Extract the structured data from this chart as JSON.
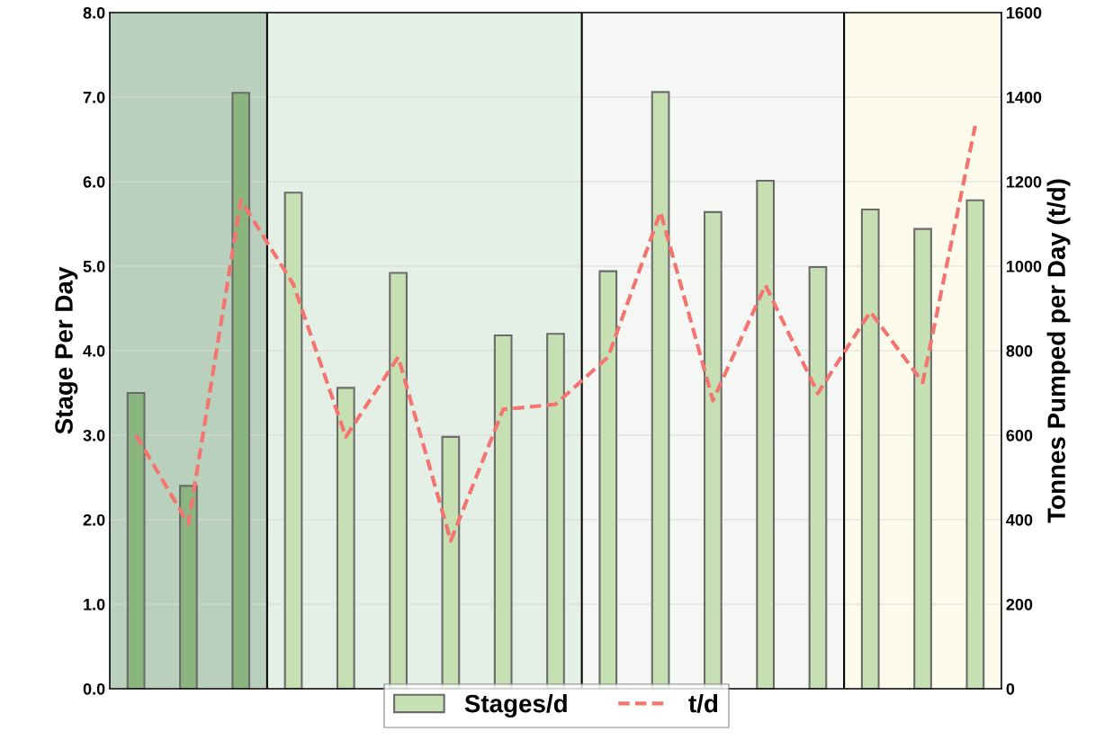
{
  "chart_data": {
    "type": "bar",
    "categories": [
      null,
      null,
      null,
      null,
      null,
      null,
      null,
      null,
      null,
      null,
      null,
      null,
      null,
      null,
      null,
      null,
      null
    ],
    "ylabel": "Stage Per Day",
    "y2label": "Tonnes Pumped per Day (t/d)",
    "ylim": [
      0,
      8
    ],
    "yticks": [
      {
        "value": 0,
        "label": "0.0"
      },
      {
        "value": 1,
        "label": "1.0"
      },
      {
        "value": 2,
        "label": "2.0"
      },
      {
        "value": 3,
        "label": "3.0"
      },
      {
        "value": 4,
        "label": "4.0"
      },
      {
        "value": 5,
        "label": "5.0"
      },
      {
        "value": 6,
        "label": "6.0"
      },
      {
        "value": 7,
        "label": "7.0"
      },
      {
        "value": 8,
        "label": "8.0"
      }
    ],
    "y2lim": [
      0,
      1600
    ],
    "y2ticks": [
      0,
      200,
      400,
      600,
      800,
      1000,
      1200,
      1400,
      1600
    ],
    "grid": "y",
    "legend": "bottom",
    "series": [
      {
        "name": "Stages/d",
        "colors": [
          "#8ab57f",
          "#8ab57f",
          "#8ab57f",
          "#c6e0b4",
          "#c6e0b4",
          "#c6e0b4",
          "#c6e0b4",
          "#c6e0b4",
          "#c6e0b4",
          "#c6e0b4",
          "#c6e0b4",
          "#c6e0b4",
          "#c6e0b4",
          "#c6e0b4",
          "#c6e0b4",
          "#c6e0b4",
          "#c6e0b4"
        ],
        "color": "#c6e0b4",
        "values": [
          3.5,
          2.4,
          7.05,
          5.87,
          3.56,
          4.92,
          2.98,
          4.18,
          4.2,
          4.94,
          7.06,
          5.64,
          6.01,
          4.99,
          5.67,
          5.44,
          5.78
        ]
      },
      {
        "name": "t/d",
        "type": "line",
        "axis": "y2",
        "color": "#f4756f",
        "line_style": "dashed",
        "values": [
          600,
          390,
          1156,
          957,
          596,
          785,
          350,
          661,
          673,
          785,
          1128,
          682,
          955,
          699,
          892,
          725,
          1332
        ]
      }
    ]
  }
}
